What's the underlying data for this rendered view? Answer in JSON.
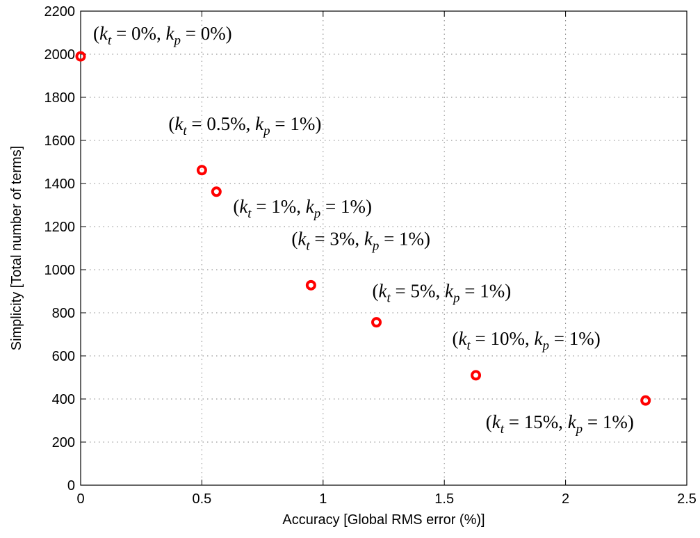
{
  "chart_data": {
    "type": "scatter",
    "xlabel": "Accuracy [Global RMS error (%)]",
    "ylabel": "Simplicity [Total number of terms]",
    "xlim": [
      0,
      2.5
    ],
    "ylim": [
      0,
      2200
    ],
    "x_ticks": [
      0,
      0.5,
      1,
      1.5,
      2,
      2.5
    ],
    "x_tick_labels": [
      "0",
      "0.5",
      "1",
      "1.5",
      "2",
      "2.5"
    ],
    "y_ticks": [
      0,
      200,
      400,
      600,
      800,
      1000,
      1200,
      1400,
      1600,
      1800,
      2000,
      2200
    ],
    "y_tick_labels": [
      "0",
      "200",
      "400",
      "600",
      "800",
      "1000",
      "1200",
      "1400",
      "1600",
      "1800",
      "2000",
      "2200"
    ],
    "grid": true,
    "marker_color": "#ff0000",
    "points": [
      {
        "x": 0.0,
        "y": 1990,
        "kt": "0",
        "kp": "0"
      },
      {
        "x": 0.5,
        "y": 1462,
        "kt": "0.5",
        "kp": "1"
      },
      {
        "x": 0.56,
        "y": 1362,
        "kt": "1",
        "kp": "1"
      },
      {
        "x": 0.95,
        "y": 928,
        "kt": "3",
        "kp": "1"
      },
      {
        "x": 1.22,
        "y": 756,
        "kt": "5",
        "kp": "1"
      },
      {
        "x": 1.63,
        "y": 510,
        "kt": "10",
        "kp": "1"
      },
      {
        "x": 2.33,
        "y": 393,
        "kt": "15",
        "kp": "1"
      }
    ]
  }
}
